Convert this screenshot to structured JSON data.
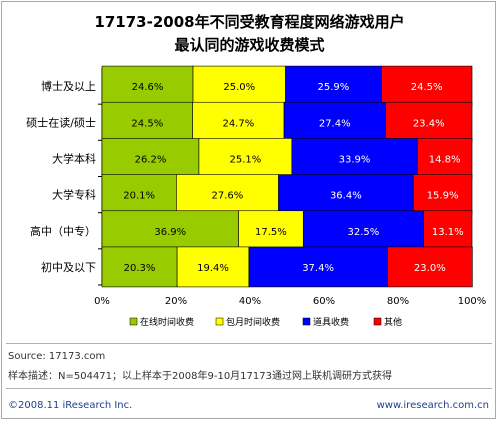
{
  "header": {
    "title_line1": "17173-2008年不同受教育程度网络游戏用户",
    "title_line2": "最认同的游戏收费模式"
  },
  "chart_data": {
    "type": "bar",
    "orientation": "horizontal",
    "stacked": "percent",
    "categories": [
      "博士及以上",
      "硕士在读/硕士",
      "大学本科",
      "大学专科",
      "高中（中专）",
      "初中及以下"
    ],
    "series": [
      {
        "name": "在线时间收费",
        "color": "#99cc00",
        "values": [
          24.6,
          24.5,
          26.2,
          20.1,
          36.9,
          20.3
        ]
      },
      {
        "name": "包月时间收费",
        "color": "#ffff00",
        "values": [
          25.0,
          24.7,
          25.1,
          27.6,
          17.5,
          19.4
        ]
      },
      {
        "name": "道具收费",
        "color": "#0000ff",
        "values": [
          25.9,
          27.4,
          33.9,
          36.4,
          32.5,
          37.4
        ]
      },
      {
        "name": "其他",
        "color": "#ff0000",
        "values": [
          24.5,
          23.4,
          14.8,
          15.9,
          13.1,
          23.0
        ]
      }
    ],
    "data_labels": [
      [
        "24.6%",
        "25.0%",
        "25.9%",
        "24.5%"
      ],
      [
        "24.5%",
        "24.7%",
        "27.4%",
        "23.4%"
      ],
      [
        "26.2%",
        "25.1%",
        "33.9%",
        "14.8%"
      ],
      [
        "20.1%",
        "27.6%",
        "36.4%",
        "15.9%"
      ],
      [
        "36.9%",
        "17.5%",
        "32.5%",
        "13.1%"
      ],
      [
        "20.3%",
        "19.4%",
        "37.4%",
        "23.0%"
      ]
    ],
    "x_ticks": [
      "0%",
      "20%",
      "40%",
      "60%",
      "80%",
      "100%"
    ],
    "xlim": [
      0,
      100
    ],
    "grid": true,
    "legend_position": "bottom"
  },
  "footer": {
    "source": "Source:  17173.com",
    "sample_note": "样本描述：N=504471；以上样本于2008年9-10月17173通过网上联机调研方式获得",
    "copyright": "©2008.11  iResearch Inc.",
    "website": "www.iresearch.com.cn"
  }
}
